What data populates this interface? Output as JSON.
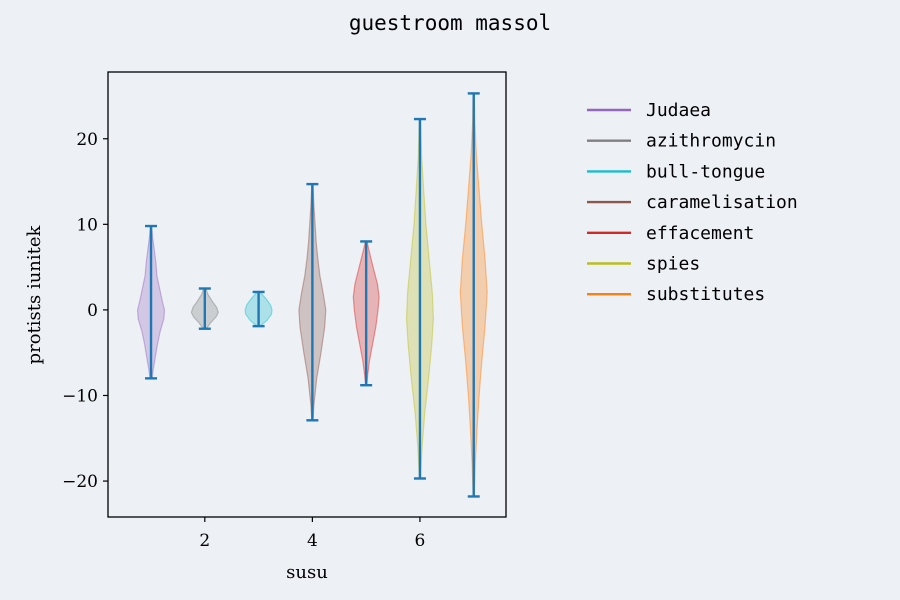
{
  "chart_data": {
    "type": "violin",
    "title": "guestroom massol",
    "xlabel": "susu",
    "ylabel": "protists iunitek",
    "xlim": [
      0.2,
      7.6
    ],
    "ylim": [
      -24.2,
      27.8
    ],
    "xticks": [
      2,
      4,
      6
    ],
    "yticks": [
      -20,
      -10,
      0,
      10,
      20
    ],
    "grid": false,
    "legend_position": "right",
    "series": [
      {
        "name": "Judaea",
        "position": 1,
        "min": -8.0,
        "max": 9.8,
        "color": "#9467bd",
        "width": 0.5,
        "profile": [
          [
            -8.0,
            0.04
          ],
          [
            -7.0,
            0.08
          ],
          [
            -5.5,
            0.16
          ],
          [
            -4,
            0.24
          ],
          [
            -2.5,
            0.34
          ],
          [
            -1,
            0.48
          ],
          [
            0,
            0.5
          ],
          [
            1,
            0.42
          ],
          [
            2.5,
            0.32
          ],
          [
            4,
            0.22
          ],
          [
            5.5,
            0.18
          ],
          [
            7,
            0.12
          ],
          [
            8.5,
            0.06
          ],
          [
            9.8,
            0.02
          ]
        ]
      },
      {
        "name": "azithromycin",
        "position": 2,
        "min": -2.2,
        "max": 2.5,
        "color": "#7f7f7f",
        "width": 0.5,
        "profile": [
          [
            -2.2,
            0.06
          ],
          [
            -1.5,
            0.22
          ],
          [
            -0.8,
            0.42
          ],
          [
            -0.3,
            0.5
          ],
          [
            0.3,
            0.44
          ],
          [
            1.0,
            0.28
          ],
          [
            1.8,
            0.12
          ],
          [
            2.5,
            0.04
          ]
        ]
      },
      {
        "name": "bull-tongue",
        "position": 3,
        "min": -1.9,
        "max": 2.1,
        "color": "#17becf",
        "width": 0.5,
        "profile": [
          [
            -1.9,
            0.06
          ],
          [
            -1.2,
            0.32
          ],
          [
            -0.5,
            0.48
          ],
          [
            0,
            0.5
          ],
          [
            0.6,
            0.44
          ],
          [
            1.3,
            0.28
          ],
          [
            2.1,
            0.05
          ]
        ]
      },
      {
        "name": "caramelisation",
        "position": 4,
        "min": -12.9,
        "max": 14.7,
        "color": "#8c564b",
        "width": 0.5,
        "profile": [
          [
            -12.9,
            0.02
          ],
          [
            -11,
            0.06
          ],
          [
            -8,
            0.16
          ],
          [
            -5,
            0.32
          ],
          [
            -2,
            0.46
          ],
          [
            0,
            0.5
          ],
          [
            2,
            0.4
          ],
          [
            4,
            0.28
          ],
          [
            6,
            0.2
          ],
          [
            8,
            0.14
          ],
          [
            10,
            0.1
          ],
          [
            12,
            0.06
          ],
          [
            14.7,
            0.02
          ]
        ]
      },
      {
        "name": "effacement",
        "position": 5,
        "min": -8.8,
        "max": 8.0,
        "color": "#d62728",
        "width": 0.5,
        "profile": [
          [
            -8.8,
            0.02
          ],
          [
            -7.5,
            0.06
          ],
          [
            -6,
            0.12
          ],
          [
            -4,
            0.24
          ],
          [
            -2,
            0.36
          ],
          [
            0,
            0.44
          ],
          [
            1.5,
            0.48
          ],
          [
            3,
            0.42
          ],
          [
            4.5,
            0.3
          ],
          [
            6,
            0.18
          ],
          [
            7,
            0.1
          ],
          [
            8,
            0.03
          ]
        ]
      },
      {
        "name": "spies",
        "position": 6,
        "min": -19.7,
        "max": 22.3,
        "color": "#bcbd22",
        "width": 0.5,
        "profile": [
          [
            -19.7,
            0.02
          ],
          [
            -16,
            0.08
          ],
          [
            -12,
            0.18
          ],
          [
            -8,
            0.32
          ],
          [
            -4,
            0.44
          ],
          [
            -1,
            0.5
          ],
          [
            2,
            0.46
          ],
          [
            6,
            0.34
          ],
          [
            10,
            0.22
          ],
          [
            14,
            0.14
          ],
          [
            18,
            0.06
          ],
          [
            22.3,
            0.02
          ]
        ]
      },
      {
        "name": "substitutes",
        "position": 7,
        "min": -21.8,
        "max": 25.3,
        "color": "#ff7f0e",
        "width": 0.5,
        "profile": [
          [
            -21.8,
            0.02
          ],
          [
            -18,
            0.06
          ],
          [
            -14,
            0.12
          ],
          [
            -10,
            0.2
          ],
          [
            -6,
            0.3
          ],
          [
            -2,
            0.42
          ],
          [
            2,
            0.5
          ],
          [
            6,
            0.42
          ],
          [
            10,
            0.3
          ],
          [
            14,
            0.2
          ],
          [
            18,
            0.1
          ],
          [
            22,
            0.04
          ],
          [
            25.3,
            0.02
          ]
        ]
      }
    ],
    "whisker_color": "#1f77b4"
  }
}
